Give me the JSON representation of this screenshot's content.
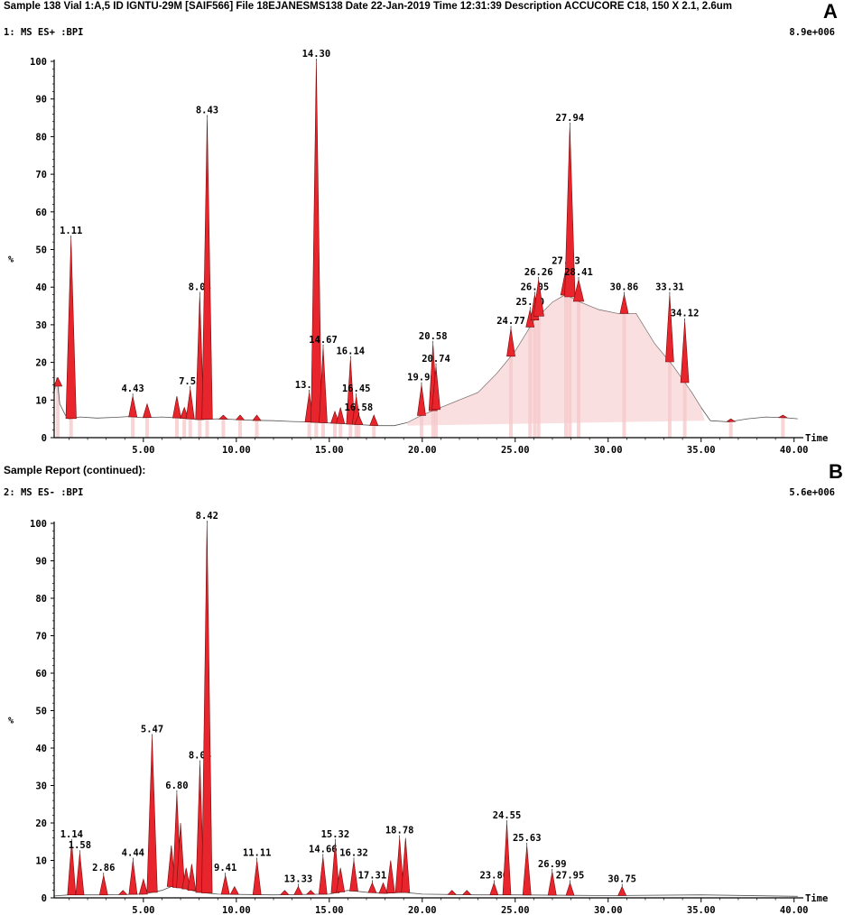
{
  "header": "Sample 138  Vial 1:A,5 ID IGNTU-29M [SAIF566] File 18EJANESMS138 Date 22-Jan-2019 Time 12:31:39 Description ACCUCORE C18, 150 X 2.1, 2.6um",
  "subheader": "Sample Report (continued):",
  "panels": [
    {
      "letter": "A",
      "trace_label": "1: MS ES+ :BPI",
      "intensity": "8.9e+006",
      "xlabel": "Time",
      "ylabel": "%"
    },
    {
      "letter": "B",
      "trace_label": "2: MS ES- :BPI",
      "intensity": "5.6e+006",
      "xlabel": "Time",
      "ylabel": "%"
    }
  ],
  "chart_data": [
    {
      "type": "line",
      "title": "1: MS ES+ :BPI",
      "xlabel": "Time",
      "ylabel": "%",
      "xlim": [
        0.2,
        40.5
      ],
      "ylim": [
        0,
        100
      ],
      "xticks": [
        "5.00",
        "10.00",
        "15.00",
        "20.00",
        "25.00",
        "30.00",
        "35.00",
        "40.00"
      ],
      "yticks": [
        "0",
        "10",
        "20",
        "30",
        "40",
        "50",
        "60",
        "70",
        "80",
        "90",
        "100"
      ],
      "baseline": [
        [
          0.2,
          12
        ],
        [
          0.35,
          16
        ],
        [
          0.5,
          9
        ],
        [
          0.8,
          6
        ],
        [
          1.0,
          5
        ],
        [
          1.6,
          5.5
        ],
        [
          2.5,
          5.2
        ],
        [
          3.5,
          5.4
        ],
        [
          4.2,
          5.6
        ],
        [
          5.0,
          5.3
        ],
        [
          6.0,
          5.5
        ],
        [
          7.0,
          5.2
        ],
        [
          8.0,
          4.8
        ],
        [
          9.0,
          5.0
        ],
        [
          10.0,
          4.8
        ],
        [
          11.0,
          4.6
        ],
        [
          12.0,
          4.5
        ],
        [
          13.0,
          4.3
        ],
        [
          13.8,
          4.2
        ],
        [
          14.5,
          4.0
        ],
        [
          15.5,
          3.8
        ],
        [
          16.5,
          3.5
        ],
        [
          17.5,
          3.2
        ],
        [
          18.5,
          3.2
        ],
        [
          19.2,
          4.0
        ],
        [
          20.0,
          6.0
        ],
        [
          21.0,
          8.0
        ],
        [
          22.0,
          10.0
        ],
        [
          23.0,
          12.0
        ],
        [
          24.0,
          17.0
        ],
        [
          25.0,
          23.0
        ],
        [
          26.0,
          31.0
        ],
        [
          27.0,
          36.0
        ],
        [
          27.7,
          38.0
        ],
        [
          28.5,
          36.0
        ],
        [
          29.5,
          34.0
        ],
        [
          30.5,
          33.0
        ],
        [
          31.5,
          33.0
        ],
        [
          32.5,
          25.0
        ],
        [
          33.5,
          19.0
        ],
        [
          34.5,
          12.0
        ],
        [
          35.0,
          8.0
        ],
        [
          35.5,
          4.5
        ],
        [
          36.5,
          4.2
        ],
        [
          37.5,
          5.0
        ],
        [
          38.5,
          5.5
        ],
        [
          39.5,
          5.3
        ],
        [
          40.2,
          5.0
        ]
      ],
      "peaks": [
        {
          "x": 0.4,
          "y": 16
        },
        {
          "x": 1.11,
          "y": 53,
          "label": "1.11"
        },
        {
          "x": 4.43,
          "y": 11,
          "label": "4.43"
        },
        {
          "x": 5.2,
          "y": 9
        },
        {
          "x": 6.8,
          "y": 11
        },
        {
          "x": 7.2,
          "y": 8
        },
        {
          "x": 7.52,
          "y": 13,
          "label": "7.52"
        },
        {
          "x": 8.03,
          "y": 38,
          "label": "8.03"
        },
        {
          "x": 8.43,
          "y": 85,
          "label": "8.43"
        },
        {
          "x": 9.3,
          "y": 6
        },
        {
          "x": 10.2,
          "y": 6
        },
        {
          "x": 11.1,
          "y": 6
        },
        {
          "x": 13.92,
          "y": 12,
          "label": "13.92"
        },
        {
          "x": 14.3,
          "y": 100,
          "label": "14.30"
        },
        {
          "x": 14.67,
          "y": 24,
          "label": "14.67"
        },
        {
          "x": 15.3,
          "y": 7
        },
        {
          "x": 15.6,
          "y": 8
        },
        {
          "x": 16.14,
          "y": 21,
          "label": "16.14"
        },
        {
          "x": 16.45,
          "y": 11,
          "label": "16.45"
        },
        {
          "x": 16.58,
          "y": 6,
          "label": "16.58"
        },
        {
          "x": 17.4,
          "y": 6
        },
        {
          "x": 19.96,
          "y": 14,
          "label": "19.96"
        },
        {
          "x": 20.58,
          "y": 25,
          "label": "20.58"
        },
        {
          "x": 20.74,
          "y": 19,
          "label": "20.74"
        },
        {
          "x": 24.77,
          "y": 29,
          "label": "24.77"
        },
        {
          "x": 25.8,
          "y": 34,
          "label": "25.80"
        },
        {
          "x": 26.05,
          "y": 38,
          "label": "26.05"
        },
        {
          "x": 26.26,
          "y": 42,
          "label": "26.26"
        },
        {
          "x": 27.73,
          "y": 45,
          "label": "27.73"
        },
        {
          "x": 27.94,
          "y": 83,
          "label": "27.94"
        },
        {
          "x": 28.41,
          "y": 42,
          "label": "28.41"
        },
        {
          "x": 30.86,
          "y": 38,
          "label": "30.86"
        },
        {
          "x": 33.31,
          "y": 38,
          "label": "33.31"
        },
        {
          "x": 34.12,
          "y": 31,
          "label": "34.12"
        },
        {
          "x": 36.6,
          "y": 5
        },
        {
          "x": 39.4,
          "y": 6
        }
      ]
    },
    {
      "type": "line",
      "title": "2: MS ES- :BPI",
      "xlabel": "Time",
      "ylabel": "%",
      "xlim": [
        0.2,
        40.5
      ],
      "ylim": [
        0,
        100
      ],
      "xticks": [
        "5.00",
        "10.00",
        "15.00",
        "20.00",
        "25.00",
        "30.00",
        "35.00",
        "40.00"
      ],
      "yticks": [
        "0",
        "10",
        "20",
        "30",
        "40",
        "50",
        "60",
        "70",
        "80",
        "90",
        "100"
      ],
      "baseline": [
        [
          0.2,
          0.5
        ],
        [
          1.0,
          0.8
        ],
        [
          3.0,
          0.8
        ],
        [
          5.0,
          1.0
        ],
        [
          6.0,
          2.0
        ],
        [
          6.5,
          3.0
        ],
        [
          7.2,
          2.5
        ],
        [
          8.0,
          1.5
        ],
        [
          9.0,
          1.0
        ],
        [
          12.0,
          0.8
        ],
        [
          15.0,
          1.0
        ],
        [
          16.0,
          2.0
        ],
        [
          17.0,
          1.5
        ],
        [
          18.0,
          1.2
        ],
        [
          19.0,
          1.5
        ],
        [
          20.0,
          1.0
        ],
        [
          23.0,
          0.8
        ],
        [
          25.0,
          0.8
        ],
        [
          30.0,
          0.6
        ],
        [
          35.0,
          0.8
        ],
        [
          40.2,
          0.4
        ]
      ],
      "peaks": [
        {
          "x": 1.14,
          "y": 15,
          "label": "1.14"
        },
        {
          "x": 1.58,
          "y": 12,
          "label": "1.58"
        },
        {
          "x": 2.86,
          "y": 6,
          "label": "2.86"
        },
        {
          "x": 3.9,
          "y": 2
        },
        {
          "x": 4.44,
          "y": 10,
          "label": "4.44"
        },
        {
          "x": 5.0,
          "y": 5
        },
        {
          "x": 5.47,
          "y": 43,
          "label": "5.47"
        },
        {
          "x": 6.5,
          "y": 14
        },
        {
          "x": 6.8,
          "y": 28,
          "label": "6.80"
        },
        {
          "x": 7.0,
          "y": 20
        },
        {
          "x": 7.3,
          "y": 8
        },
        {
          "x": 7.6,
          "y": 9
        },
        {
          "x": 8.04,
          "y": 36,
          "label": "8.04"
        },
        {
          "x": 8.42,
          "y": 100,
          "label": "8.42"
        },
        {
          "x": 9.41,
          "y": 6,
          "label": "9.41"
        },
        {
          "x": 9.9,
          "y": 3
        },
        {
          "x": 11.11,
          "y": 10,
          "label": "11.11"
        },
        {
          "x": 12.6,
          "y": 2
        },
        {
          "x": 13.33,
          "y": 3,
          "label": "13.33"
        },
        {
          "x": 14.0,
          "y": 2
        },
        {
          "x": 14.66,
          "y": 11,
          "label": "14.66"
        },
        {
          "x": 15.32,
          "y": 15,
          "label": "15.32"
        },
        {
          "x": 15.6,
          "y": 8
        },
        {
          "x": 16.32,
          "y": 10,
          "label": "16.32"
        },
        {
          "x": 17.31,
          "y": 4,
          "label": "17.31"
        },
        {
          "x": 17.9,
          "y": 4
        },
        {
          "x": 18.3,
          "y": 10
        },
        {
          "x": 18.78,
          "y": 16,
          "label": "18.78"
        },
        {
          "x": 19.1,
          "y": 16
        },
        {
          "x": 21.6,
          "y": 2
        },
        {
          "x": 22.4,
          "y": 2
        },
        {
          "x": 23.86,
          "y": 4,
          "label": "23.86"
        },
        {
          "x": 24.55,
          "y": 20,
          "label": "24.55"
        },
        {
          "x": 25.63,
          "y": 14,
          "label": "25.63"
        },
        {
          "x": 26.99,
          "y": 7,
          "label": "26.99"
        },
        {
          "x": 27.95,
          "y": 4,
          "label": "27.95"
        },
        {
          "x": 30.75,
          "y": 3,
          "label": "30.75"
        }
      ]
    }
  ]
}
